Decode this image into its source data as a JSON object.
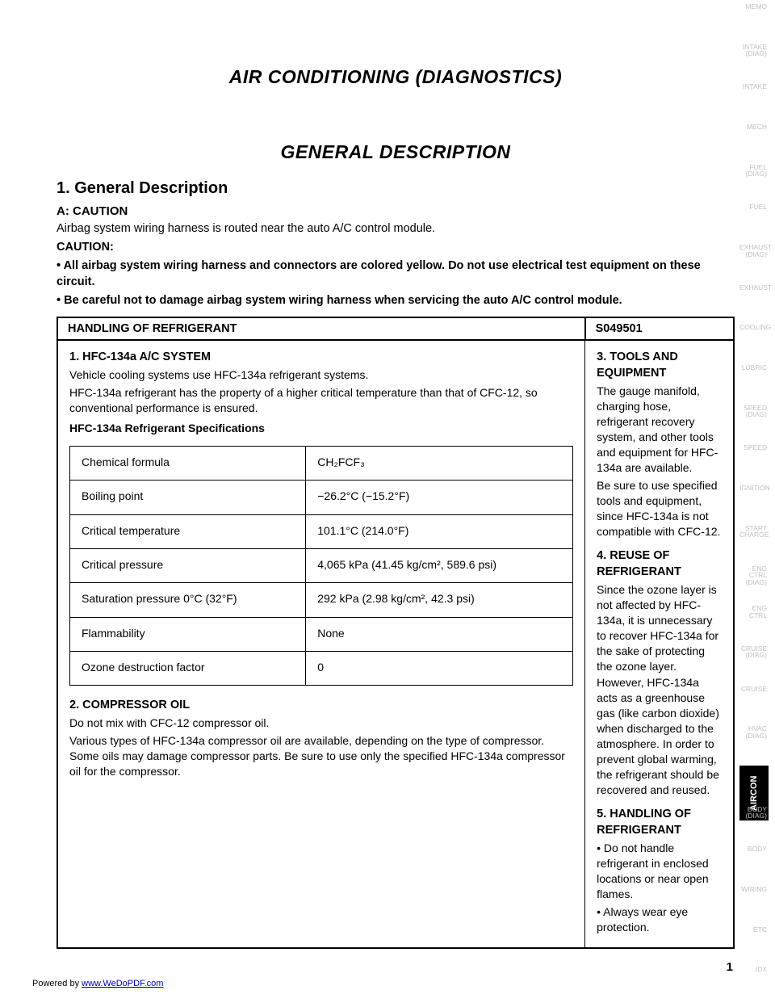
{
  "header": {
    "title": "AIR CONDITIONING (DIAGNOSTICS)"
  },
  "section": {
    "heading": "GENERAL DESCRIPTION",
    "sub1": {
      "heading": "1. General Description",
      "subA": {
        "heading": "A: CAUTION",
        "para1": "Airbag system wiring harness is routed near the auto A/C control module.",
        "para2": "CAUTION:",
        "bullets": [
          "All airbag system wiring harness and connectors are colored yellow. Do not use electrical test equipment on these circuit.",
          "Be careful not to damage airbag system wiring harness when servicing the auto A/C control module."
        ]
      }
    }
  },
  "refrigerant": {
    "tableTitle": "HANDLING OF REFRIGERANT",
    "tableCode": "S049501",
    "col1": {
      "h": "1. HFC-134a A/C SYSTEM",
      "p1": "Vehicle cooling systems use HFC-134a refrigerant systems.",
      "p2": "HFC-134a refrigerant has the property of a higher critical temperature than that of CFC-12, so conventional performance is ensured.",
      "specHeading": "HFC-134a Refrigerant Specifications",
      "rows": [
        [
          "Chemical formula",
          "CH₂FCF₃"
        ],
        [
          "Boiling point",
          "−26.2°C (−15.2°F)"
        ],
        [
          "Critical temperature",
          "101.1°C (214.0°F)"
        ],
        [
          "Critical pressure",
          "4,065 kPa (41.45 kg/cm², 589.6 psi)"
        ],
        [
          "Saturation pressure 0°C (32°F)",
          "292 kPa (2.98 kg/cm², 42.3 psi)"
        ],
        [
          "Flammability",
          "None"
        ],
        [
          "Ozone destruction factor",
          "0"
        ]
      ],
      "p3heading": "2. COMPRESSOR OIL",
      "p3": "Do not mix with CFC-12 compressor oil.",
      "p4": "Various types of HFC-134a compressor oil are available, depending on the type of compressor. Some oils may damage compressor parts. Be sure to use only the specified HFC-134a compressor oil for the compressor."
    },
    "col2": {
      "h": "3. TOOLS AND EQUIPMENT",
      "p1": "The gauge manifold, charging hose, refrigerant recovery system, and other tools and equipment for HFC-134a are available.",
      "p2": "Be sure to use specified tools and equipment, since HFC-134a is not compatible with CFC-12.",
      "p3h": "4. REUSE OF REFRIGERANT",
      "p3": "Since the ozone layer is not affected by HFC-134a, it is unnecessary to recover HFC-134a for the sake of protecting the ozone layer. However, HFC-134a acts as a greenhouse gas (like carbon dioxide) when discharged to the atmosphere. In order to prevent global warming, the refrigerant should be recovered and reused.",
      "p4h": "5. HANDLING OF REFRIGERANT",
      "bullets": [
        "Do not handle refrigerant in enclosed locations or near open flames.",
        "Always wear eye protection."
      ]
    }
  },
  "footer": {
    "pageNum": "1",
    "leftText": "Powered by",
    "leftLink": "www.WeDoPDF.com"
  },
  "sidetab": {
    "labels": [
      "MEMO",
      "INTAKE (DIAG)",
      "INTAKE",
      "MECH",
      "FUEL (DIAG)",
      "FUEL",
      "EXHAUST (DIAG)",
      "EXHAUST",
      "COOLING",
      "LUBRIC",
      "SPEED (DIAG)",
      "SPEED",
      "IGNITION",
      "START CHARGE",
      "ENG CTRL (DIAG)",
      "ENG CTRL",
      "CRUISE (DIAG)",
      "CRUISE",
      "HVAC (DIAG)",
      "AIRCON",
      "BODY (DIAG)",
      "BODY",
      "WIRING",
      "ETC",
      "IDX"
    ],
    "activeIndex": 19,
    "activeLabel": "AIRCON"
  },
  "style": {
    "text_color": "#000000",
    "bg_color": "#ffffff",
    "tab_inactive_color": "#bfbfbf",
    "tab_active_bg": "#000000",
    "tab_active_color": "#ffffff",
    "link_color": "#0000cc",
    "shade_bg": "#e0e0e0"
  }
}
